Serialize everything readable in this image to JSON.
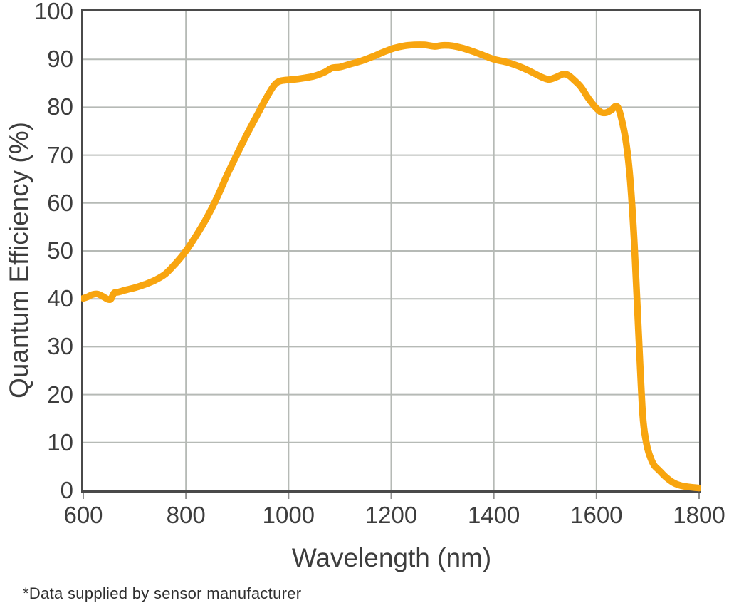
{
  "colors": {
    "curve": "#F8A50F",
    "grid": "#b6bab6",
    "axis_border": "#4a4a4a",
    "tick_mark": "#909090",
    "tick_text": "#3d3d3d",
    "footnote_text": "#2e2e2e",
    "background": "#ffffff"
  },
  "footnote": "*Data supplied by sensor manufacturer",
  "chart_data": {
    "type": "line",
    "title": "",
    "xlabel": "Wavelength (nm)",
    "ylabel": "Quantum Efficiency (%)",
    "xlim": [
      600,
      1800
    ],
    "ylim": [
      0,
      100
    ],
    "x_ticks": [
      600,
      800,
      1000,
      1200,
      1400,
      1600,
      1800
    ],
    "y_ticks": [
      0,
      10,
      20,
      30,
      40,
      50,
      60,
      70,
      80,
      90,
      100
    ],
    "grid": true,
    "legend": false,
    "footnote": "*Data supplied by sensor manufacturer",
    "series": [
      {
        "name": "Quantum Efficiency",
        "color": "#F8A50F",
        "points": [
          [
            600,
            40.1
          ],
          [
            608,
            40.4
          ],
          [
            618,
            40.9
          ],
          [
            628,
            41.0
          ],
          [
            638,
            40.5
          ],
          [
            648,
            39.9
          ],
          [
            654,
            40.0
          ],
          [
            660,
            41.2
          ],
          [
            668,
            41.4
          ],
          [
            685,
            41.9
          ],
          [
            700,
            42.3
          ],
          [
            720,
            43.0
          ],
          [
            740,
            43.9
          ],
          [
            760,
            45.2
          ],
          [
            780,
            47.4
          ],
          [
            800,
            50.0
          ],
          [
            820,
            53.2
          ],
          [
            840,
            56.8
          ],
          [
            860,
            61.0
          ],
          [
            880,
            65.8
          ],
          [
            900,
            70.3
          ],
          [
            920,
            74.6
          ],
          [
            940,
            78.6
          ],
          [
            955,
            81.6
          ],
          [
            968,
            84.0
          ],
          [
            978,
            85.2
          ],
          [
            990,
            85.6
          ],
          [
            1010,
            85.8
          ],
          [
            1030,
            86.1
          ],
          [
            1050,
            86.5
          ],
          [
            1070,
            87.3
          ],
          [
            1085,
            88.2
          ],
          [
            1100,
            88.4
          ],
          [
            1120,
            89.0
          ],
          [
            1140,
            89.6
          ],
          [
            1165,
            90.6
          ],
          [
            1185,
            91.5
          ],
          [
            1205,
            92.3
          ],
          [
            1225,
            92.8
          ],
          [
            1245,
            93.0
          ],
          [
            1265,
            93.0
          ],
          [
            1285,
            92.7
          ],
          [
            1300,
            92.9
          ],
          [
            1320,
            92.8
          ],
          [
            1340,
            92.3
          ],
          [
            1360,
            91.6
          ],
          [
            1380,
            90.8
          ],
          [
            1400,
            90.0
          ],
          [
            1425,
            89.4
          ],
          [
            1450,
            88.5
          ],
          [
            1465,
            87.8
          ],
          [
            1480,
            87.0
          ],
          [
            1495,
            86.2
          ],
          [
            1508,
            85.8
          ],
          [
            1522,
            86.3
          ],
          [
            1535,
            86.9
          ],
          [
            1545,
            86.7
          ],
          [
            1558,
            85.5
          ],
          [
            1570,
            84.2
          ],
          [
            1584,
            81.9
          ],
          [
            1598,
            80.0
          ],
          [
            1610,
            78.9
          ],
          [
            1620,
            78.9
          ],
          [
            1630,
            79.5
          ],
          [
            1637,
            80.2
          ],
          [
            1643,
            79.7
          ],
          [
            1650,
            77.0
          ],
          [
            1658,
            72.5
          ],
          [
            1666,
            64.5
          ],
          [
            1674,
            51.0
          ],
          [
            1682,
            33.0
          ],
          [
            1690,
            16.0
          ],
          [
            1697,
            10.0
          ],
          [
            1704,
            7.2
          ],
          [
            1712,
            5.3
          ],
          [
            1722,
            4.2
          ],
          [
            1735,
            2.8
          ],
          [
            1750,
            1.6
          ],
          [
            1765,
            1.0
          ],
          [
            1782,
            0.7
          ],
          [
            1800,
            0.5
          ]
        ]
      }
    ]
  }
}
